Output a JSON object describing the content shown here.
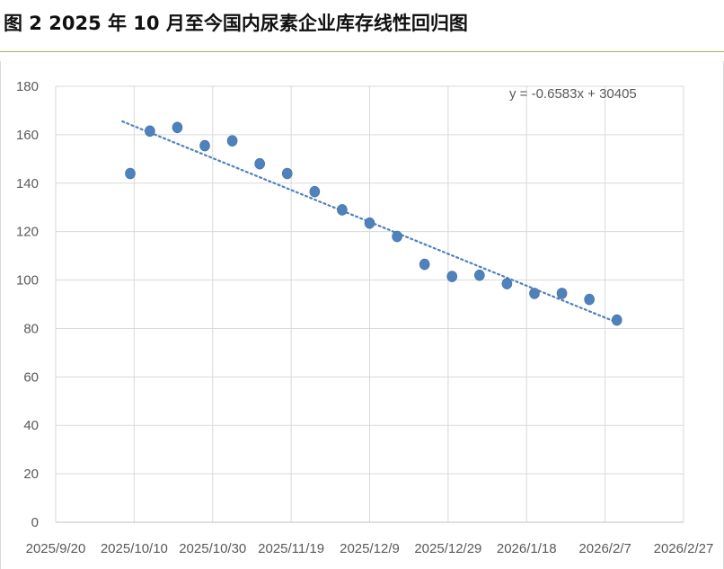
{
  "title": "图 2 2025 年 10 月至今国内尿素企业库存线性回归图",
  "colors": {
    "marker": "#4f81bd",
    "trendline": "#4f81bd",
    "grid": "#d9d9d9",
    "title_rule": "#9bbb59",
    "tick_text": "#595959"
  },
  "chart_data": {
    "type": "scatter",
    "x_axis": {
      "type": "date",
      "range": [
        "2025-09-20",
        "2026-02-27"
      ],
      "tick_labels": [
        "2025/9/20",
        "2025/10/10",
        "2025/10/30",
        "2025/11/19",
        "2025/12/9",
        "2025/12/29",
        "2026/1/18",
        "2026/2/7",
        "2026/2/27"
      ],
      "grid": true
    },
    "y_axis": {
      "range": [
        0,
        180
      ],
      "tick_labels": [
        "0",
        "20",
        "40",
        "60",
        "80",
        "100",
        "120",
        "140",
        "160",
        "180"
      ],
      "grid": true
    },
    "series": [
      {
        "points": [
          {
            "x": "2025-10-09",
            "y": 144
          },
          {
            "x": "2025-10-14",
            "y": 161.5
          },
          {
            "x": "2025-10-21",
            "y": 163
          },
          {
            "x": "2025-10-28",
            "y": 155.5
          },
          {
            "x": "2025-11-04",
            "y": 157.5
          },
          {
            "x": "2025-11-11",
            "y": 148
          },
          {
            "x": "2025-11-18",
            "y": 144
          },
          {
            "x": "2025-11-25",
            "y": 136.5
          },
          {
            "x": "2025-12-02",
            "y": 129
          },
          {
            "x": "2025-12-09",
            "y": 123.5
          },
          {
            "x": "2025-12-16",
            "y": 118
          },
          {
            "x": "2025-12-23",
            "y": 106.5
          },
          {
            "x": "2025-12-30",
            "y": 101.5
          },
          {
            "x": "2026-01-06",
            "y": 102
          },
          {
            "x": "2026-01-13",
            "y": 98.5
          },
          {
            "x": "2026-01-20",
            "y": 94.5
          },
          {
            "x": "2026-01-27",
            "y": 94.5
          },
          {
            "x": "2026-02-03",
            "y": 92
          },
          {
            "x": "2026-02-10",
            "y": 83.5
          }
        ]
      }
    ],
    "trendline": {
      "type": "linear",
      "style": "dotted",
      "equation": "y = -0.6583x + 30405",
      "x_range": [
        "2025-10-07",
        "2026-02-10"
      ],
      "y_range": [
        165.5,
        82.5
      ]
    },
    "legend": "none"
  }
}
